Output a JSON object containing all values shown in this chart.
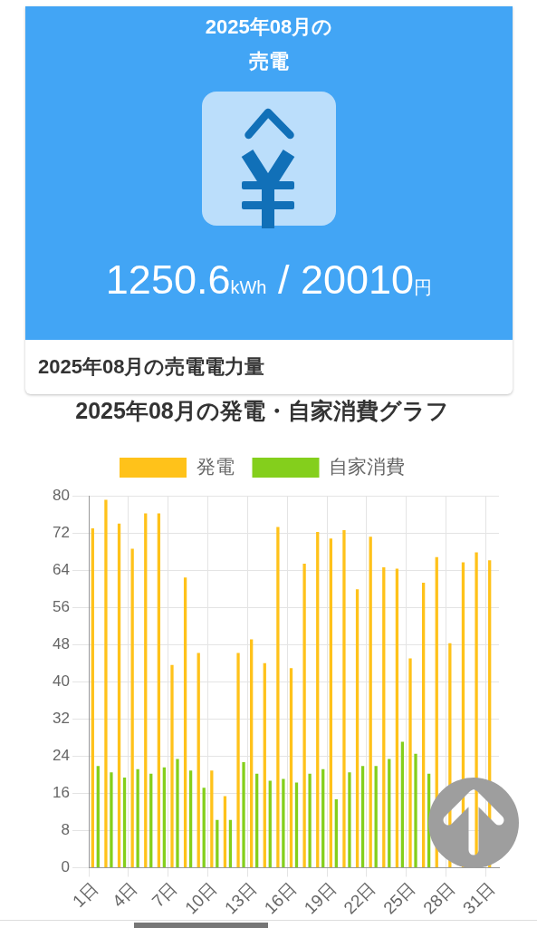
{
  "chart_data": [
    {
      "type": "other",
      "title": "2025年08月の",
      "subtitle": "売電",
      "annotations": [
        "1250.6kWh / 20010円",
        "2025年08月の売電電力量"
      ]
    },
    {
      "type": "bar",
      "title": "2025年08月の発電・自家消費グラフ",
      "categories": [
        "1日",
        null,
        null,
        "4日",
        null,
        null,
        "7日",
        null,
        null,
        "10日",
        null,
        null,
        "13日",
        null,
        null,
        "16日",
        null,
        null,
        "19日",
        null,
        null,
        "22日",
        null,
        null,
        "25日",
        null,
        null,
        "28日",
        null,
        null,
        "31日"
      ],
      "series": [
        {
          "name": "発電",
          "color": "#ffc21a",
          "values": [
            73.0,
            79.1,
            74.0,
            68.6,
            76.2,
            76.2,
            43.6,
            62.4,
            46.2,
            20.9,
            15.4,
            46.2,
            49.1,
            44.0,
            73.3,
            42.9,
            65.4,
            72.2,
            70.8,
            72.6,
            59.9,
            71.2,
            64.6,
            64.3,
            45.0,
            61.3,
            66.8,
            48.3,
            65.7,
            67.8,
            66.1
          ]
        },
        {
          "name": "自家消費",
          "color": "#84cf1c",
          "values": [
            21.9,
            20.5,
            19.4,
            21.2,
            20.2,
            21.6,
            23.4,
            20.9,
            17.2,
            10.3,
            10.3,
            22.7,
            20.2,
            18.7,
            19.1,
            18.3,
            20.2,
            21.2,
            14.7,
            20.5,
            21.9,
            21.9,
            23.4,
            27.1,
            24.5,
            20.2,
            null,
            null,
            null,
            null,
            null
          ]
        }
      ],
      "ylim": [
        0,
        80
      ],
      "yticks": [
        0,
        8,
        16,
        24,
        32,
        40,
        48,
        56,
        64,
        72,
        80
      ],
      "grid": true,
      "legend": "top"
    }
  ]
}
